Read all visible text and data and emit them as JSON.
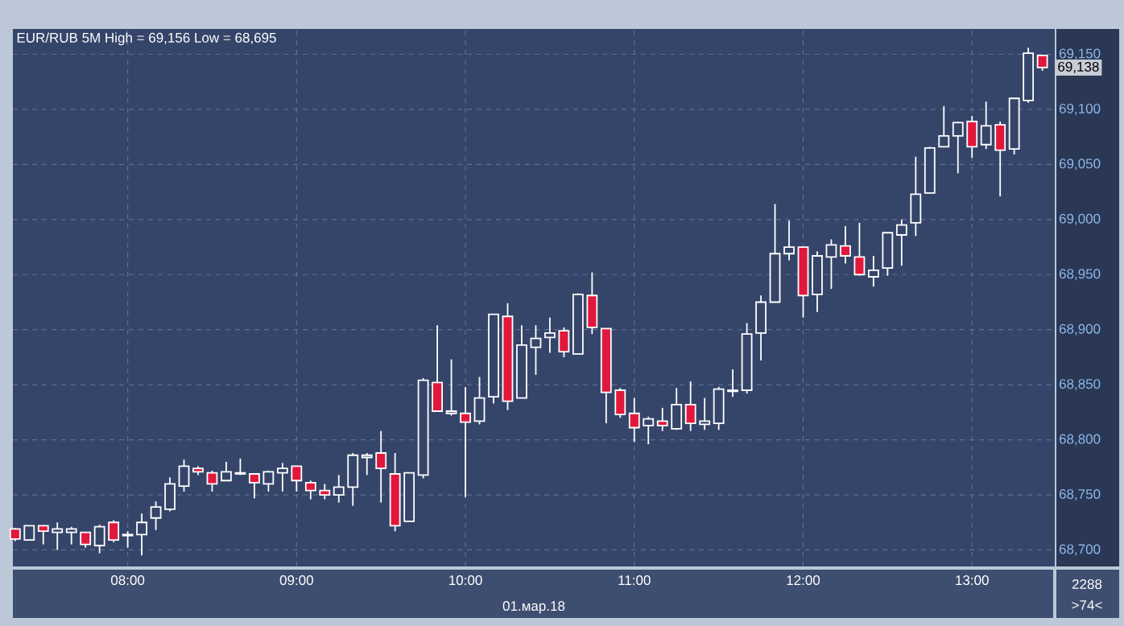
{
  "chart_data": {
    "type": "candlestick",
    "title": "EUR/RUB 5M High = 69,156 Low = 68,695",
    "xlabel": "01.мар.18",
    "x": [
      7.3333,
      7.4167,
      7.5,
      7.5833,
      7.6667,
      7.75,
      7.8333,
      7.9167,
      8,
      8.0833,
      8.1667,
      8.25,
      8.3333,
      8.4167,
      8.5,
      8.5833,
      8.6667,
      8.75,
      8.8333,
      8.9167,
      9,
      9.0833,
      9.1667,
      9.25,
      9.3333,
      9.4167,
      9.5,
      9.5833,
      9.6667,
      9.75,
      9.8333,
      9.9167,
      10,
      10.0833,
      10.1667,
      10.25,
      10.3333,
      10.4167,
      10.5,
      10.5833,
      10.6667,
      10.75,
      10.8333,
      10.9167,
      11,
      11.0833,
      11.1667,
      11.25,
      11.3333,
      11.4167,
      11.5,
      11.5833,
      11.6667,
      11.75,
      11.8333,
      11.9167,
      12,
      12.0833,
      12.1667,
      12.25,
      12.3333,
      12.4167,
      12.5,
      12.5833,
      12.6667,
      12.75,
      12.8333,
      12.9167,
      13,
      13.0833,
      13.1667,
      13.25,
      13.3333,
      13.4167
    ],
    "ohlc": [
      [
        68719,
        68720,
        68708,
        68710
      ],
      [
        68709,
        68722,
        68709,
        68722
      ],
      [
        68722,
        68722,
        68705,
        68717
      ],
      [
        68716,
        68725,
        68700,
        68719
      ],
      [
        68716,
        68721,
        68705,
        68719
      ],
      [
        68716,
        68716,
        68702,
        68705
      ],
      [
        68704,
        68723,
        68697,
        68721
      ],
      [
        68725,
        68727,
        68707,
        68709
      ],
      [
        68713,
        68717,
        68702,
        68714
      ],
      [
        68714,
        68733,
        68695,
        68725
      ],
      [
        68729,
        68744,
        68718,
        68739
      ],
      [
        68737,
        68766,
        68735,
        68760
      ],
      [
        68758,
        68782,
        68753,
        68776
      ],
      [
        68774,
        68776,
        68768,
        68771
      ],
      [
        68770,
        68772,
        68753,
        68760
      ],
      [
        68763,
        68780,
        68763,
        68771
      ],
      [
        68769,
        68783,
        68768,
        68770
      ],
      [
        68769,
        68769,
        68747,
        68761
      ],
      [
        68760,
        68772,
        68753,
        68771
      ],
      [
        68770,
        68779,
        68753,
        68774
      ],
      [
        68776,
        68776,
        68753,
        68763
      ],
      [
        68761,
        68763,
        68746,
        68754
      ],
      [
        68754,
        68760,
        68746,
        68750
      ],
      [
        68750,
        68768,
        68743,
        68757
      ],
      [
        68757,
        68788,
        68740,
        68786
      ],
      [
        68784,
        68788,
        68768,
        68786
      ],
      [
        68788,
        68808,
        68743,
        68774
      ],
      [
        68769,
        68788,
        68717,
        68722
      ],
      [
        68726,
        68770,
        68726,
        68770
      ],
      [
        68768,
        68856,
        68765,
        68854
      ],
      [
        68852,
        68904,
        68826,
        68826
      ],
      [
        68824,
        68873,
        68822,
        68826
      ],
      [
        68824,
        68848,
        68748,
        68816
      ],
      [
        68817,
        68857,
        68814,
        68838
      ],
      [
        68839,
        68914,
        68833,
        68914
      ],
      [
        68912,
        68924,
        68827,
        68835
      ],
      [
        68838,
        68904,
        68838,
        68886
      ],
      [
        68884,
        68904,
        68859,
        68892
      ],
      [
        68893,
        68911,
        68879,
        68897
      ],
      [
        68899,
        68902,
        68875,
        68880
      ],
      [
        68878,
        68933,
        68878,
        68932
      ],
      [
        68931,
        68952,
        68896,
        68902
      ],
      [
        68901,
        68901,
        68815,
        68843
      ],
      [
        68845,
        68847,
        68820,
        68823
      ],
      [
        68824,
        68838,
        68798,
        68811
      ],
      [
        68813,
        68821,
        68796,
        68819
      ],
      [
        68817,
        68829,
        68808,
        68813
      ],
      [
        68810,
        68847,
        68809,
        68832
      ],
      [
        68832,
        68853,
        68808,
        68815
      ],
      [
        68814,
        68838,
        68809,
        68817
      ],
      [
        68815,
        68848,
        68809,
        68846
      ],
      [
        68844,
        68864,
        68839,
        68845
      ],
      [
        68845,
        68906,
        68842,
        68896
      ],
      [
        68897,
        68931,
        68872,
        68925
      ],
      [
        68925,
        69014,
        68925,
        68969
      ],
      [
        68969,
        68999,
        68963,
        68975
      ],
      [
        68975,
        68975,
        68911,
        68931
      ],
      [
        68932,
        68971,
        68916,
        68967
      ],
      [
        68966,
        68982,
        68937,
        68977
      ],
      [
        68976,
        68994,
        68960,
        68967
      ],
      [
        68966,
        68997,
        68949,
        68950
      ],
      [
        68948,
        68967,
        68939,
        68954
      ],
      [
        68956,
        68988,
        68949,
        68988
      ],
      [
        68986,
        69000,
        68958,
        68995
      ],
      [
        68997,
        69057,
        68985,
        69023
      ],
      [
        69024,
        69066,
        69024,
        69065
      ],
      [
        69066,
        69103,
        69066,
        69076
      ],
      [
        69076,
        69089,
        69042,
        69088
      ],
      [
        69089,
        69094,
        69056,
        69066
      ],
      [
        69068,
        69107,
        69064,
        69085
      ],
      [
        69086,
        69089,
        69021,
        69063
      ],
      [
        69064,
        69110,
        69059,
        69110
      ],
      [
        69108,
        69156,
        69106,
        69151
      ],
      [
        69149,
        69149,
        69135,
        69138
      ]
    ],
    "xlim": [
      7.32,
      13.49
    ],
    "ylim": [
      68685,
      69173
    ],
    "xticks": [
      {
        "value": 8,
        "label": "08:00"
      },
      {
        "value": 9,
        "label": "09:00"
      },
      {
        "value": 10,
        "label": "10:00"
      },
      {
        "value": 11,
        "label": "11:00"
      },
      {
        "value": 12,
        "label": "12:00"
      },
      {
        "value": 13,
        "label": "13:00"
      }
    ],
    "yticks": [
      {
        "value": 68700,
        "label": "68,700"
      },
      {
        "value": 68750,
        "label": "68,750"
      },
      {
        "value": 68800,
        "label": "68,800"
      },
      {
        "value": 68850,
        "label": "68,850"
      },
      {
        "value": 68900,
        "label": "68,900"
      },
      {
        "value": 68950,
        "label": "68,950"
      },
      {
        "value": 69000,
        "label": "69,000"
      },
      {
        "value": 69050,
        "label": "69,050"
      },
      {
        "value": 69100,
        "label": "69,100"
      },
      {
        "value": 69150,
        "label": "69,150"
      }
    ],
    "grid": true,
    "annotations": [
      {
        "text": "69,138",
        "y": 69138
      },
      "2288",
      ">74<"
    ]
  }
}
